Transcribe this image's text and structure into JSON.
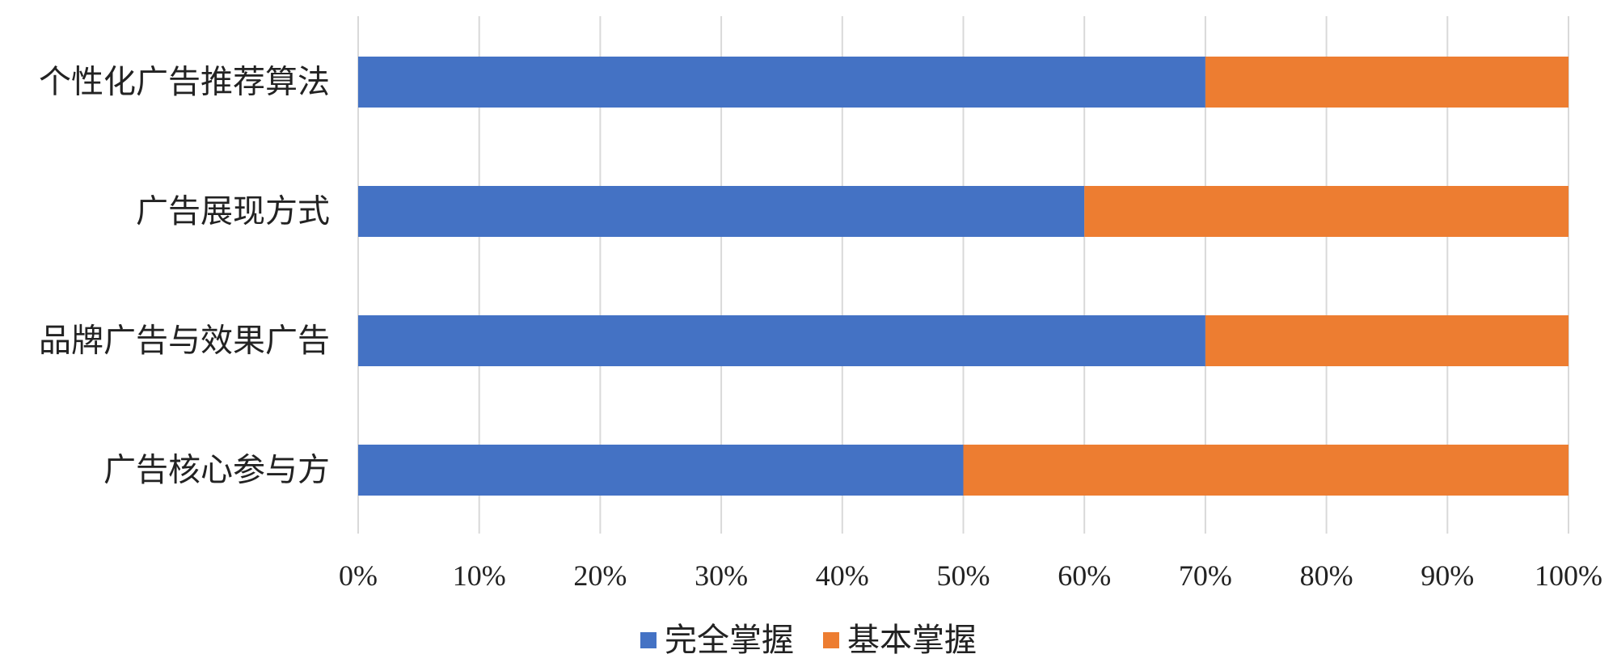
{
  "chart_data": {
    "type": "bar",
    "orientation": "horizontal",
    "stacked": "percent",
    "categories": [
      "个性化广告推荐算法",
      "广告展现方式",
      "品牌广告与效果广告",
      "广告核心参与方"
    ],
    "series": [
      {
        "name": "完全掌握",
        "color": "#4472C4",
        "values": [
          70,
          60,
          70,
          50
        ]
      },
      {
        "name": "基本掌握",
        "color": "#ED7D31",
        "values": [
          30,
          40,
          30,
          50
        ]
      }
    ],
    "xlim": [
      0,
      100
    ],
    "xticks": [
      0,
      10,
      20,
      30,
      40,
      50,
      60,
      70,
      80,
      90,
      100
    ],
    "xtick_labels": [
      "0%",
      "10%",
      "20%",
      "30%",
      "40%",
      "50%",
      "60%",
      "70%",
      "80%",
      "90%",
      "100%"
    ],
    "grid": "vertical",
    "legend": "bottom"
  }
}
